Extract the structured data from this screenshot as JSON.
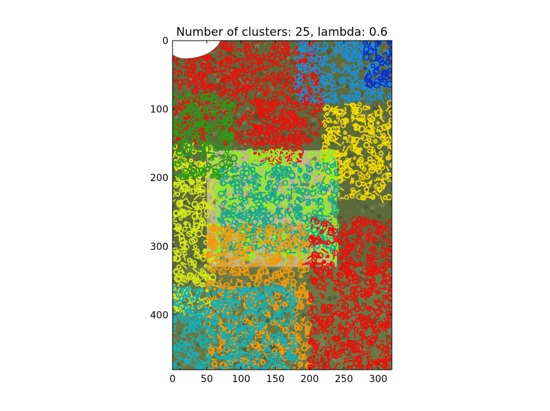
{
  "chart_data": {
    "type": "image",
    "title": "Number of clusters: 25, lambda: 0.6",
    "xlabel": "",
    "ylabel": "",
    "xlim": [
      0,
      320
    ],
    "ylim": [
      480,
      0
    ],
    "x_ticks": [
      0,
      50,
      100,
      150,
      200,
      250,
      300
    ],
    "y_ticks": [
      0,
      100,
      200,
      300,
      400
    ],
    "n_clusters": 25,
    "lambda": 0.6,
    "image": {
      "description_free": true,
      "background_regions": [
        {
          "name": "sky",
          "color": "#ffffff",
          "x": [
            0,
            70
          ],
          "y": [
            0,
            30
          ]
        },
        {
          "name": "foliage",
          "color": "#5d6b3c",
          "x": [
            0,
            320
          ],
          "y": [
            0,
            480
          ]
        },
        {
          "name": "grass",
          "color": "#6b7a45",
          "x": [
            0,
            320
          ],
          "y": [
            330,
            480
          ]
        },
        {
          "name": "jacket",
          "color": "#c9bf96",
          "x": [
            50,
            240
          ],
          "y": [
            160,
            330
          ]
        }
      ],
      "cluster_colors": [
        "#e8120c",
        "#f01a10",
        "#1a8fd8",
        "#0a2fd0",
        "#f2d800",
        "#d4e61a",
        "#8ef21a",
        "#18a890",
        "#f29a0c",
        "#14b0b8",
        "#2a9a1a",
        "#d0321a"
      ],
      "cluster_regions": [
        {
          "color": "#e8120c",
          "x": [
            0,
            220
          ],
          "y": [
            0,
            150
          ]
        },
        {
          "color": "#e8120c",
          "x": [
            120,
            190
          ],
          "y": [
            100,
            180
          ]
        },
        {
          "color": "#1a8fd8",
          "x": [
            180,
            320
          ],
          "y": [
            0,
            90
          ]
        },
        {
          "color": "#0a2fd0",
          "x": [
            280,
            320
          ],
          "y": [
            0,
            70
          ]
        },
        {
          "color": "#f2d800",
          "x": [
            220,
            320
          ],
          "y": [
            90,
            230
          ]
        },
        {
          "color": "#d4e61a",
          "x": [
            0,
            60
          ],
          "y": [
            150,
            400
          ]
        },
        {
          "color": "#8ef21a",
          "x": [
            60,
            240
          ],
          "y": [
            160,
            320
          ]
        },
        {
          "color": "#18a890",
          "x": [
            70,
            240
          ],
          "y": [
            180,
            310
          ]
        },
        {
          "color": "#f29a0c",
          "x": [
            50,
            200
          ],
          "y": [
            270,
            480
          ]
        },
        {
          "color": "#e8120c",
          "x": [
            200,
            320
          ],
          "y": [
            260,
            480
          ]
        },
        {
          "color": "#14b0b8",
          "x": [
            0,
            180
          ],
          "y": [
            360,
            480
          ]
        },
        {
          "color": "#2a9a1a",
          "x": [
            0,
            90
          ],
          "y": [
            80,
            200
          ]
        }
      ]
    }
  }
}
